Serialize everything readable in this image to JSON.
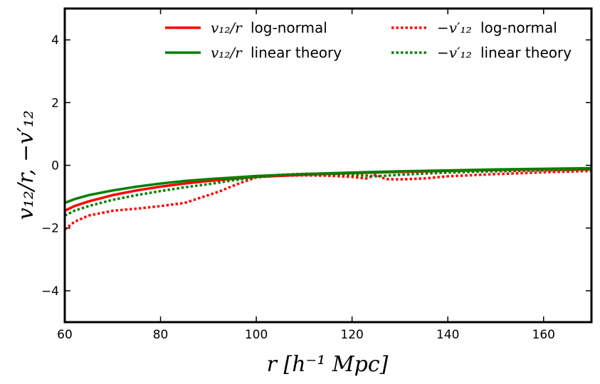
{
  "chart_data": {
    "type": "line",
    "title": "",
    "xlabel": "r [h⁻¹ Mpc]",
    "ylabel": "v₁₂/r, −v′₁₂",
    "xlim": [
      60,
      170
    ],
    "ylim": [
      -5,
      5
    ],
    "xticks": [
      60,
      80,
      100,
      120,
      140,
      160
    ],
    "xtick_labels": [
      "60",
      "80",
      "100",
      "120",
      "140",
      "160"
    ],
    "yticks": [
      -4,
      -2,
      0,
      2,
      4
    ],
    "ytick_labels": [
      "−4",
      "−2",
      "0",
      "2",
      "4"
    ],
    "grid": false,
    "legend_position": "top-right",
    "series": [
      {
        "name": "v₁₂/r log-normal",
        "legend_math": "v₁₂/r",
        "legend_text": "log-normal",
        "color": "#ff0000",
        "style": "solid",
        "x": [
          60,
          62,
          65,
          70,
          75,
          80,
          85,
          90,
          95,
          100,
          110,
          120,
          130,
          140,
          150,
          160,
          170
        ],
        "y": [
          -1.45,
          -1.3,
          -1.15,
          -0.95,
          -0.8,
          -0.68,
          -0.58,
          -0.5,
          -0.43,
          -0.37,
          -0.3,
          -0.25,
          -0.21,
          -0.18,
          -0.15,
          -0.13,
          -0.11
        ]
      },
      {
        "name": "v₁₂/r linear theory",
        "legend_math": "v₁₂/r",
        "legend_text": "linear theory",
        "color": "#008000",
        "style": "solid",
        "x": [
          60,
          62,
          65,
          70,
          75,
          80,
          85,
          90,
          95,
          100,
          110,
          120,
          130,
          140,
          150,
          160,
          170
        ],
        "y": [
          -1.2,
          -1.08,
          -0.95,
          -0.8,
          -0.68,
          -0.58,
          -0.5,
          -0.44,
          -0.39,
          -0.34,
          -0.28,
          -0.23,
          -0.19,
          -0.16,
          -0.13,
          -0.11,
          -0.09
        ]
      },
      {
        "name": "−v′₁₂ log-normal",
        "legend_math": "−v′₁₂",
        "legend_text": "log-normal",
        "color": "#ff0000",
        "style": "dotted",
        "x": [
          60,
          62,
          65,
          70,
          75,
          80,
          85,
          88,
          92,
          96,
          100,
          105,
          110,
          115,
          120,
          123,
          125,
          127,
          130,
          135,
          140,
          150,
          160,
          170
        ],
        "y": [
          -2.05,
          -1.8,
          -1.6,
          -1.45,
          -1.38,
          -1.3,
          -1.2,
          -1.05,
          -0.85,
          -0.6,
          -0.38,
          -0.33,
          -0.32,
          -0.33,
          -0.37,
          -0.42,
          -0.3,
          -0.44,
          -0.45,
          -0.42,
          -0.35,
          -0.28,
          -0.22,
          -0.18
        ]
      },
      {
        "name": "−v′₁₂ linear theory",
        "legend_math": "−v′₁₂",
        "legend_text": "linear theory",
        "color": "#008000",
        "style": "dotted",
        "x": [
          60,
          62,
          65,
          70,
          75,
          80,
          85,
          90,
          95,
          100,
          105,
          110,
          115,
          120,
          125,
          130,
          140,
          150,
          160,
          170
        ],
        "y": [
          -1.6,
          -1.45,
          -1.3,
          -1.1,
          -0.95,
          -0.82,
          -0.7,
          -0.6,
          -0.48,
          -0.38,
          -0.3,
          -0.27,
          -0.27,
          -0.3,
          -0.35,
          -0.3,
          -0.23,
          -0.19,
          -0.16,
          -0.13
        ]
      }
    ]
  }
}
